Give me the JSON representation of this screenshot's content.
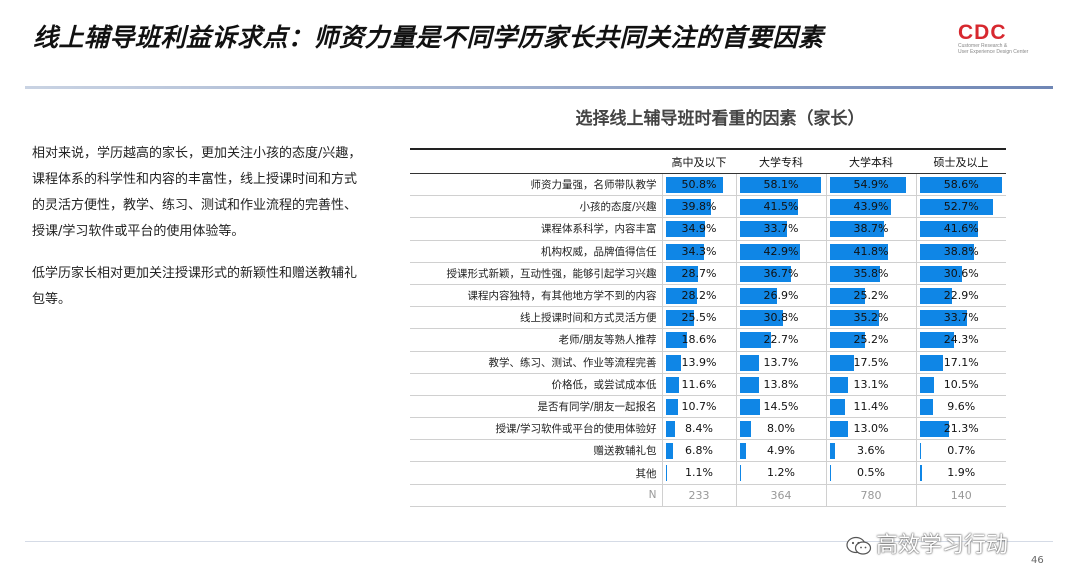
{
  "slide": {
    "title": "线上辅导班利益诉求点：师资力量是不同学历家长共同关注的首要因素",
    "logo_text": "CDC",
    "logo_sub1": "Customer Research &",
    "logo_sub2": "User Experience Design Center",
    "paragraphs": [
      "相对来说，学历越高的家长，更加关注小孩的态度/兴趣，课程体系的科学性和内容的丰富性，线上授课时间和方式的灵活方便性，教学、练习、测试和作业流程的完善性、授课/学习软件或平台的使用体验等。",
      "低学历家长相对更加关注授课形式的新颖性和赠送教辅礼包等。"
    ],
    "page_number": "46",
    "watermark": "高效学习行动"
  },
  "chart_data": {
    "type": "table",
    "title": "选择线上辅导班时看重的因素（家长）",
    "value_format": "percent",
    "bar_color": "#0f86e6",
    "columns": [
      "高中及以下",
      "大学专科",
      "大学本科",
      "硕士及以上"
    ],
    "rows": [
      {
        "label": "师资力量强，名师带队教学",
        "values": [
          50.8,
          58.1,
          54.9,
          58.6
        ]
      },
      {
        "label": "小孩的态度/兴趣",
        "values": [
          39.8,
          41.5,
          43.9,
          52.7
        ]
      },
      {
        "label": "课程体系科学，内容丰富",
        "values": [
          34.9,
          33.7,
          38.7,
          41.6
        ]
      },
      {
        "label": "机构权威，品牌值得信任",
        "values": [
          34.3,
          42.9,
          41.8,
          38.8
        ]
      },
      {
        "label": "授课形式新颖，互动性强，能够引起学习兴趣",
        "values": [
          28.7,
          36.7,
          35.8,
          30.6
        ]
      },
      {
        "label": "课程内容独特，有其他地方学不到的内容",
        "values": [
          28.2,
          26.9,
          25.2,
          22.9
        ]
      },
      {
        "label": "线上授课时间和方式灵活方便",
        "values": [
          25.5,
          30.8,
          35.2,
          33.7
        ]
      },
      {
        "label": "老师/朋友等熟人推荐",
        "values": [
          18.6,
          22.7,
          25.2,
          24.3
        ]
      },
      {
        "label": "教学、练习、测试、作业等流程完善",
        "values": [
          13.9,
          13.7,
          17.5,
          17.1
        ]
      },
      {
        "label": "价格低，或尝试成本低",
        "values": [
          11.6,
          13.8,
          13.1,
          10.5
        ]
      },
      {
        "label": "是否有同学/朋友一起报名",
        "values": [
          10.7,
          14.5,
          11.4,
          9.6
        ]
      },
      {
        "label": "授课/学习软件或平台的使用体验好",
        "values": [
          8.4,
          8.0,
          13.0,
          21.3
        ]
      },
      {
        "label": "赠送教辅礼包",
        "values": [
          6.8,
          4.9,
          3.6,
          0.7
        ]
      },
      {
        "label": "其他",
        "values": [
          1.1,
          1.2,
          0.5,
          1.9
        ]
      }
    ],
    "n_label": "N",
    "n_values": [
      233,
      364,
      780,
      140
    ]
  }
}
